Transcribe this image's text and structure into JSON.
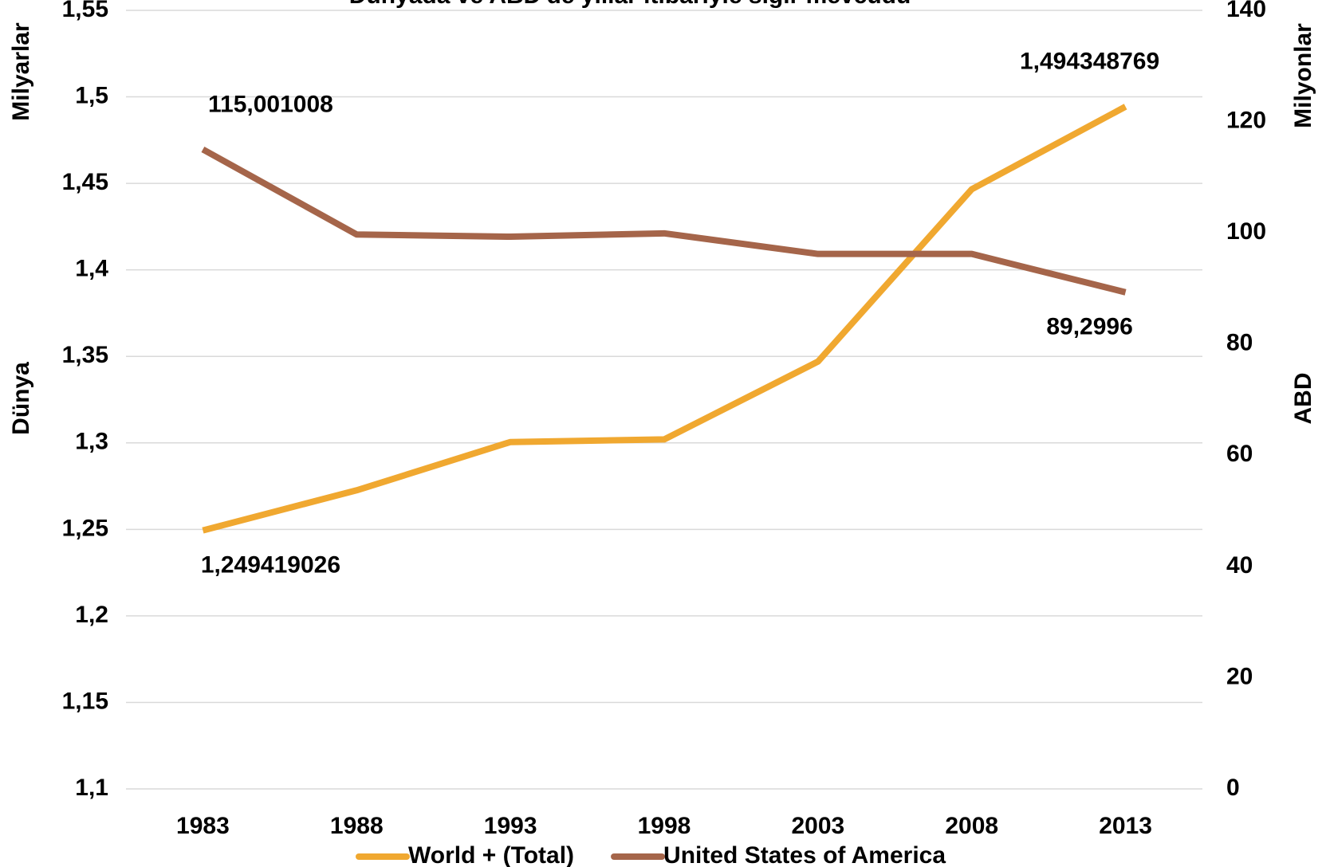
{
  "chart_data": {
    "type": "line",
    "title": "Dünyada ve ABD'de yıllar itibarıyle sığır mevcudu",
    "categories": [
      "1983",
      "1988",
      "1993",
      "1998",
      "2003",
      "2008",
      "2013"
    ],
    "series": [
      {
        "name": "World + (Total)",
        "color": "#f0a830",
        "axis": "y",
        "values": [
          1.249419026,
          1.2726,
          1.3005,
          1.302,
          1.347,
          1.4466,
          1.494348769
        ],
        "value_labels": [
          "1,249419026",
          null,
          null,
          null,
          null,
          null,
          "1,494348769"
        ]
      },
      {
        "name": "United States of America",
        "color": "#a5654a",
        "axis": "y2",
        "values": [
          115.001008,
          99.7,
          99.3,
          99.9,
          96.2,
          96.2,
          89.2996
        ],
        "value_labels": [
          "115,001008",
          null,
          null,
          null,
          null,
          null,
          "89,2996"
        ]
      }
    ],
    "ylabel_units": "Milyarlar",
    "ylabel": "Dünya",
    "y2label_units": "Milyonlar",
    "y2label": "ABD",
    "ylim": [
      1.1,
      1.55
    ],
    "yticks": [
      {
        "value": 1.1,
        "label": "1,1"
      },
      {
        "value": 1.15,
        "label": "1,15"
      },
      {
        "value": 1.2,
        "label": "1,2"
      },
      {
        "value": 1.25,
        "label": "1,25"
      },
      {
        "value": 1.3,
        "label": "1,3"
      },
      {
        "value": 1.35,
        "label": "1,35"
      },
      {
        "value": 1.4,
        "label": "1,4"
      },
      {
        "value": 1.45,
        "label": "1,45"
      },
      {
        "value": 1.5,
        "label": "1,5"
      },
      {
        "value": 1.55,
        "label": "1,55"
      }
    ],
    "y2lim": [
      0,
      140
    ],
    "y2ticks": [
      0,
      20,
      40,
      60,
      80,
      100,
      120,
      140
    ],
    "grid": true,
    "legend": "bottom"
  }
}
